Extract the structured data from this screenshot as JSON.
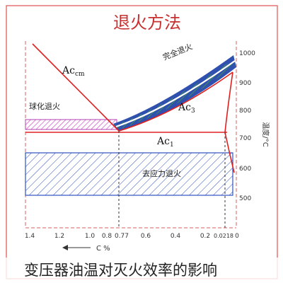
{
  "title": "退火方法",
  "caption": "变压器油温对灭火效率的影响",
  "lines": {
    "acm": "Ac",
    "acm_sub": "cm",
    "ac3": "Ac",
    "ac3_sub": "3",
    "ac1": "Ac",
    "ac1_sub": "1"
  },
  "regions": {
    "full_anneal": "完全退火",
    "spheroidize": "球化退火",
    "stress_relief": "去应力退火"
  },
  "y_axis": {
    "label": "温度/°C",
    "ticks": [
      "1000",
      "900",
      "800",
      "700",
      "600",
      "500"
    ]
  },
  "x_axis": {
    "label": "C %",
    "ticks": [
      "1.4",
      "1.2",
      "1.0",
      "0.8",
      "0.77",
      "0.6",
      "0.4",
      "0.2",
      "0.0218",
      "0"
    ]
  },
  "colors": {
    "frame": "#e05050",
    "line": "#e02020",
    "full_band": "#3050b0",
    "hatch_green": "#40a040",
    "hatch_pink": "#d040c0",
    "hatch_blue": "#3050c0"
  }
}
